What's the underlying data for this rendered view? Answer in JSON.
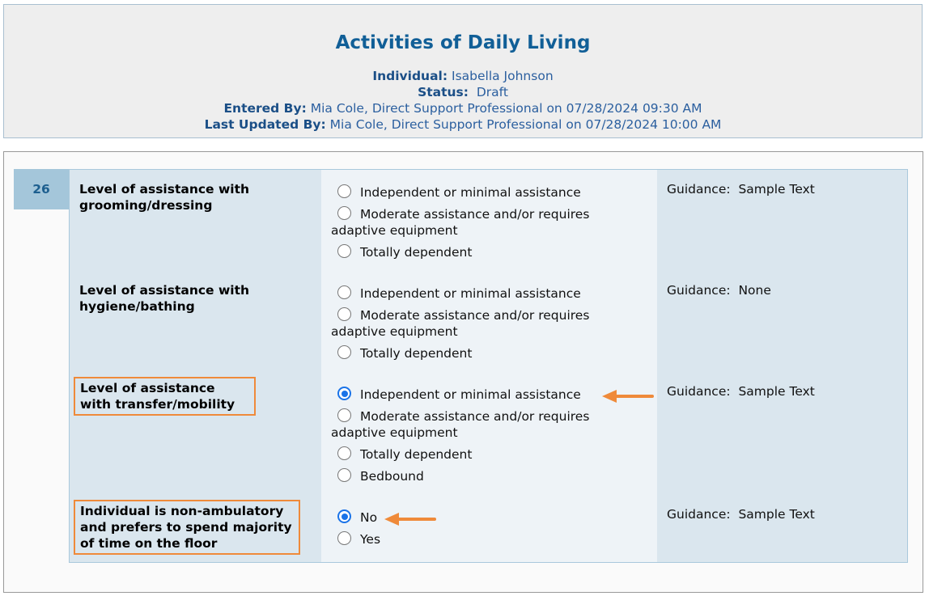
{
  "header": {
    "title": "Activities of Daily Living",
    "individual_label": "Individual:",
    "individual": "Isabella Johnson",
    "status_label": "Status:",
    "status": "Draft",
    "entered_label": "Entered By:",
    "entered": "Mia Cole, Direct Support Professional on 07/28/2024 09:30 AM",
    "updated_label": "Last Updated By:",
    "updated": "Mia Cole, Direct Support Professional on 07/28/2024 10:00 AM"
  },
  "section_number": "26",
  "guidance_label": "Guidance:",
  "questions": [
    {
      "label": "Level of assistance with grooming/dressing",
      "options": [
        "Independent or minimal assistance",
        "Moderate assistance and/or requires adaptive equipment",
        "Totally dependent"
      ],
      "selected": null,
      "guidance": "Sample Text"
    },
    {
      "label": "Level of assistance with hygiene/bathing",
      "options": [
        "Independent or minimal assistance",
        "Moderate assistance and/or requires adaptive equipment",
        "Totally dependent"
      ],
      "selected": null,
      "guidance": "None"
    },
    {
      "label": "Level of assistance with transfer/mobility",
      "options": [
        "Independent or minimal assistance",
        "Moderate assistance and/or requires adaptive equipment",
        "Totally dependent",
        "Bedbound"
      ],
      "selected": 0,
      "guidance": "Sample Text"
    },
    {
      "label": "Individual is non-ambulatory and prefers to spend majority of time on the floor",
      "options": [
        "No",
        "Yes"
      ],
      "selected": 0,
      "guidance": "Sample Text"
    }
  ],
  "colors": {
    "accent": "#ef8a3a",
    "radio_selected": "#1a73e8",
    "title": "#115f97"
  }
}
